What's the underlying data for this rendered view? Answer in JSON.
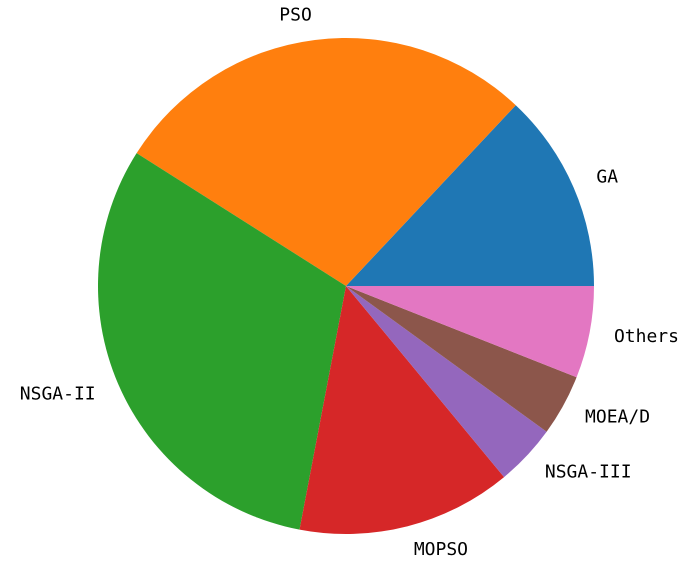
{
  "chart_data": {
    "type": "pie",
    "categories": [
      "GA",
      "PSO",
      "NSGA-II",
      "MOPSO",
      "NSGA-III",
      "MOEA/D",
      "Others"
    ],
    "values": [
      13,
      28,
      31,
      14,
      4,
      4,
      6
    ],
    "colors": [
      "#1f77b4",
      "#ff7f0e",
      "#2ca02c",
      "#d62728",
      "#9467bd",
      "#8c564b",
      "#e377c2"
    ],
    "start_angle": 0,
    "counterclockwise": true
  }
}
